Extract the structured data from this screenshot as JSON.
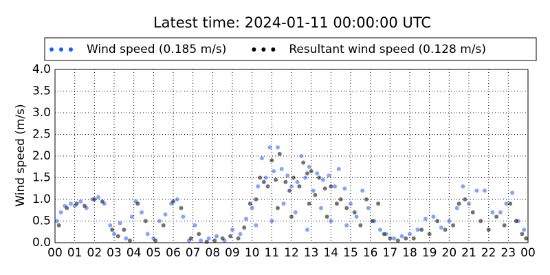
{
  "chart_data": {
    "type": "scatter",
    "title": "Latest time: 2024-01-11 00:00:00 UTC",
    "ylabel": "Wind speed (m/s)",
    "xlim": [
      0,
      24
    ],
    "ylim": [
      0,
      4
    ],
    "xticks": [
      {
        "value": 0,
        "label": "00"
      },
      {
        "value": 1,
        "label": "01"
      },
      {
        "value": 2,
        "label": "02"
      },
      {
        "value": 3,
        "label": "03"
      },
      {
        "value": 4,
        "label": "04"
      },
      {
        "value": 5,
        "label": "05"
      },
      {
        "value": 6,
        "label": "06"
      },
      {
        "value": 7,
        "label": "07"
      },
      {
        "value": 8,
        "label": "08"
      },
      {
        "value": 9,
        "label": "09"
      },
      {
        "value": 10,
        "label": "10"
      },
      {
        "value": 11,
        "label": "11"
      },
      {
        "value": 12,
        "label": "12"
      },
      {
        "value": 13,
        "label": "13"
      },
      {
        "value": 14,
        "label": "14"
      },
      {
        "value": 15,
        "label": "15"
      },
      {
        "value": 16,
        "label": "16"
      },
      {
        "value": 17,
        "label": "17"
      },
      {
        "value": 18,
        "label": "18"
      },
      {
        "value": 19,
        "label": "19"
      },
      {
        "value": 20,
        "label": "20"
      },
      {
        "value": 21,
        "label": "21"
      },
      {
        "value": 22,
        "label": "22"
      },
      {
        "value": 23,
        "label": "23"
      },
      {
        "value": 24,
        "label": "00"
      }
    ],
    "yticks": [
      {
        "value": 0,
        "label": "0.0"
      },
      {
        "value": 0.5,
        "label": "0.5"
      },
      {
        "value": 1,
        "label": "1.0"
      },
      {
        "value": 1.5,
        "label": "1.5"
      },
      {
        "value": 2,
        "label": "2.0"
      },
      {
        "value": 2.5,
        "label": "2.5"
      },
      {
        "value": 3,
        "label": "3.0"
      },
      {
        "value": 3.5,
        "label": "3.5"
      },
      {
        "value": 4,
        "label": "4.0"
      }
    ],
    "grid": true,
    "legend": "top",
    "series": [
      {
        "name": "Wind speed (0.185 m/s)",
        "color": "#1a5cff",
        "x": [
          0.1,
          0.3,
          0.5,
          0.8,
          1.0,
          1.3,
          1.6,
          1.9,
          2.2,
          2.5,
          2.8,
          3.0,
          3.3,
          3.6,
          3.9,
          4.1,
          4.4,
          4.7,
          5.0,
          5.3,
          5.6,
          5.9,
          6.2,
          6.5,
          6.8,
          7.1,
          7.4,
          7.8,
          8.2,
          8.6,
          9.0,
          9.4,
          9.7,
          10.0,
          10.3,
          10.5,
          10.7,
          10.9,
          11.1,
          11.3,
          11.5,
          11.8,
          12.0,
          12.3,
          12.5,
          12.7,
          12.9,
          13.1,
          13.3,
          13.6,
          13.9,
          14.2,
          14.4,
          14.7,
          15.0,
          15.3,
          15.6,
          15.9,
          16.2,
          16.5,
          16.8,
          17.2,
          17.6,
          18.0,
          18.4,
          18.8,
          19.2,
          19.6,
          20.0,
          20.4,
          20.7,
          21.0,
          21.4,
          21.8,
          22.2,
          22.6,
          22.9,
          23.2,
          23.5,
          23.8,
          10.2,
          11.0,
          11.6,
          12.2,
          12.8,
          13.5,
          14.0,
          14.8
        ],
        "values": [
          0.5,
          0.7,
          0.85,
          0.9,
          0.85,
          0.95,
          0.8,
          1.0,
          1.05,
          0.9,
          0.4,
          0.2,
          0.45,
          0.1,
          0.6,
          0.95,
          0.7,
          0.2,
          0.1,
          0.5,
          0.65,
          0.9,
          1.0,
          0.6,
          0.05,
          0.4,
          0.05,
          0.1,
          0.15,
          0.05,
          0.3,
          0.2,
          0.55,
          0.8,
          1.3,
          1.95,
          1.5,
          2.2,
          1.65,
          2.2,
          1.7,
          1.55,
          1.3,
          1.4,
          2.0,
          1.5,
          1.75,
          1.2,
          1.6,
          1.45,
          1.55,
          1.3,
          1.7,
          1.25,
          0.9,
          0.6,
          1.2,
          0.8,
          0.5,
          0.3,
          0.2,
          0.1,
          0.15,
          0.2,
          0.3,
          0.55,
          0.6,
          0.35,
          0.5,
          0.8,
          1.3,
          0.9,
          1.2,
          1.2,
          0.7,
          0.7,
          0.9,
          1.15,
          0.5,
          0.3,
          0.4,
          0.5,
          0.9,
          0.7,
          0.3,
          0.8,
          0.5,
          0.4
        ]
      },
      {
        "name": "Resultant wind speed (0.128 m/s)",
        "color": "#000000",
        "x": [
          0.2,
          0.6,
          1.1,
          1.5,
          2.0,
          2.4,
          2.9,
          3.2,
          3.5,
          3.8,
          4.2,
          4.6,
          5.1,
          5.5,
          6.0,
          6.4,
          6.9,
          7.3,
          7.7,
          8.1,
          8.5,
          8.9,
          9.3,
          9.6,
          9.9,
          10.2,
          10.4,
          10.6,
          10.8,
          11.0,
          11.2,
          11.4,
          11.7,
          11.9,
          12.1,
          12.4,
          12.6,
          12.8,
          13.0,
          13.2,
          13.4,
          13.7,
          14.0,
          14.3,
          14.5,
          14.8,
          15.2,
          15.5,
          15.8,
          16.1,
          16.4,
          16.7,
          17.0,
          17.4,
          17.8,
          18.2,
          18.6,
          19.0,
          19.4,
          19.8,
          20.2,
          20.5,
          20.8,
          21.2,
          21.6,
          22.0,
          22.4,
          22.8,
          23.1,
          23.4,
          23.7,
          23.9,
          11.3,
          12.0,
          12.9,
          13.8
        ],
        "values": [
          0.4,
          0.8,
          0.9,
          0.85,
          1.0,
          0.95,
          0.3,
          0.15,
          0.3,
          0.05,
          0.9,
          0.5,
          0.05,
          0.4,
          0.95,
          0.8,
          0.1,
          0.2,
          0.02,
          0.05,
          0.1,
          0.15,
          0.1,
          0.35,
          0.9,
          1.0,
          1.5,
          1.4,
          1.3,
          1.9,
          1.45,
          2.05,
          1.4,
          1.2,
          1.5,
          1.3,
          1.85,
          1.6,
          1.65,
          1.1,
          1.5,
          1.25,
          1.3,
          0.9,
          1.0,
          0.8,
          0.7,
          0.4,
          1.0,
          0.5,
          0.9,
          0.2,
          0.1,
          0.05,
          0.1,
          0.1,
          0.3,
          0.2,
          0.5,
          0.3,
          0.4,
          0.9,
          1.0,
          0.7,
          0.5,
          0.3,
          0.6,
          0.4,
          0.9,
          0.5,
          0.2,
          0.1,
          0.8,
          0.6,
          0.9,
          0.6
        ]
      }
    ]
  }
}
